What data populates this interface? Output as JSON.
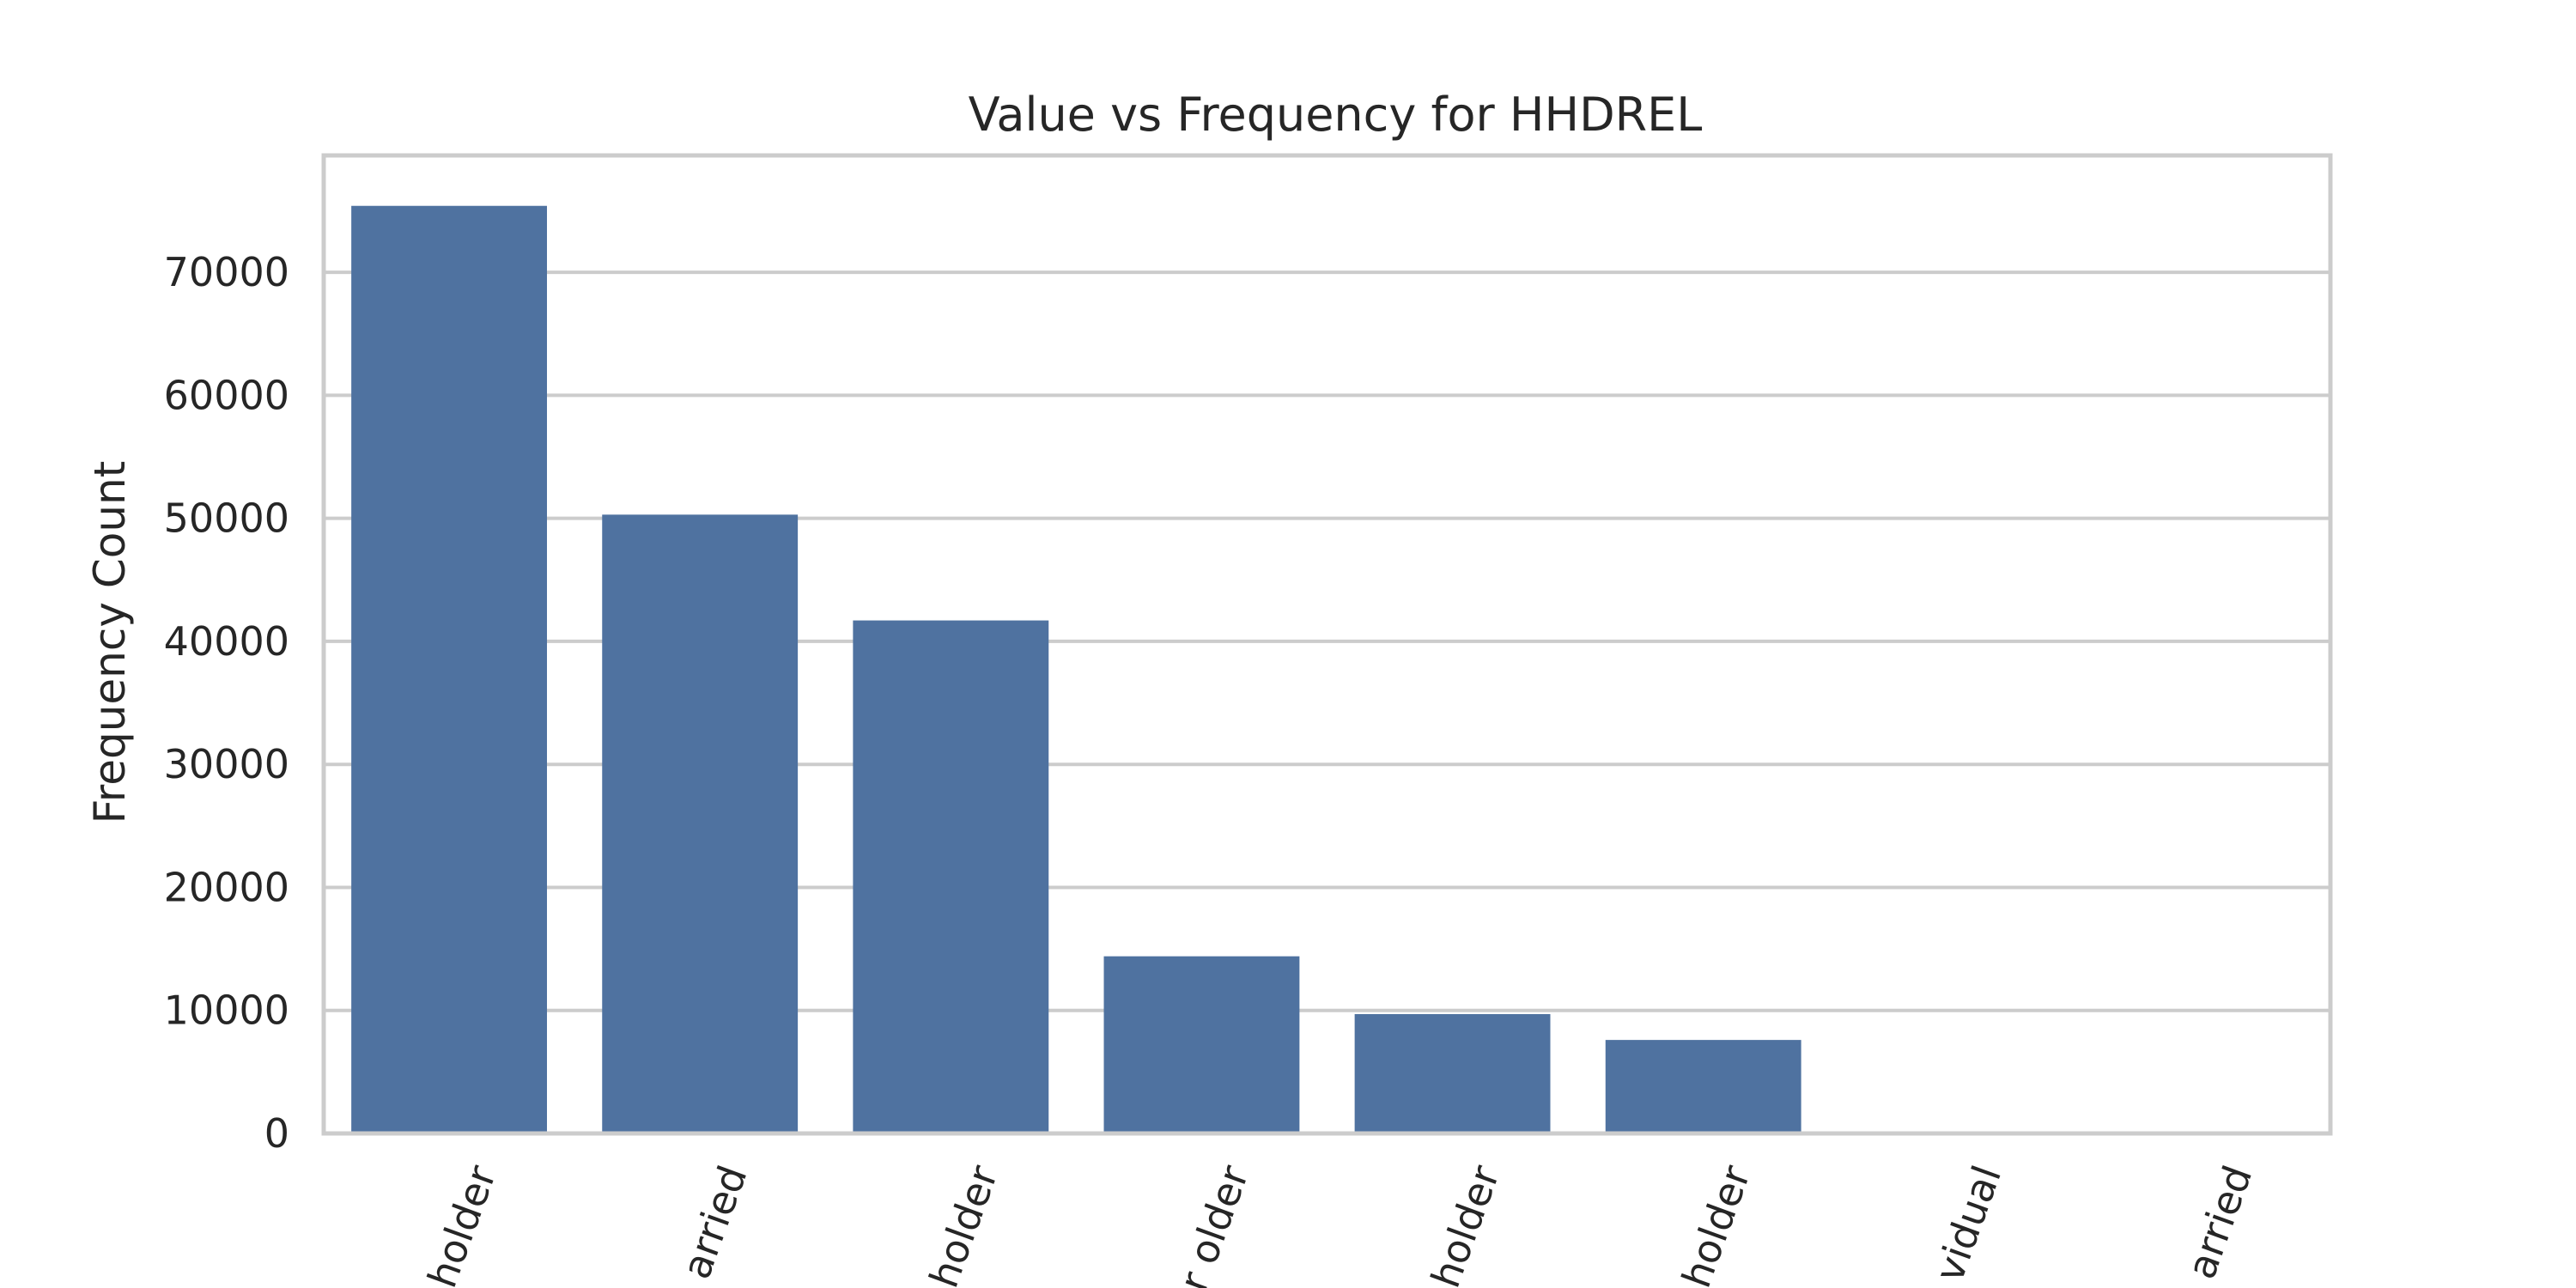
{
  "chart_data": {
    "type": "bar",
    "title": "Value vs Frequency for HHDREL",
    "xlabel": "",
    "ylabel": "Frequency Count",
    "categories": [
      "holder",
      "arried",
      "holder",
      "r older",
      "holder",
      "holder",
      "vidual",
      "arried"
    ],
    "values": [
      75400,
      50300,
      41700,
      14400,
      9700,
      7600,
      60,
      30
    ],
    "ylim": [
      0,
      79500
    ],
    "yticks": [
      0,
      10000,
      20000,
      30000,
      40000,
      50000,
      60000,
      70000
    ],
    "grid": true,
    "bar_color": "#4f72a0"
  }
}
